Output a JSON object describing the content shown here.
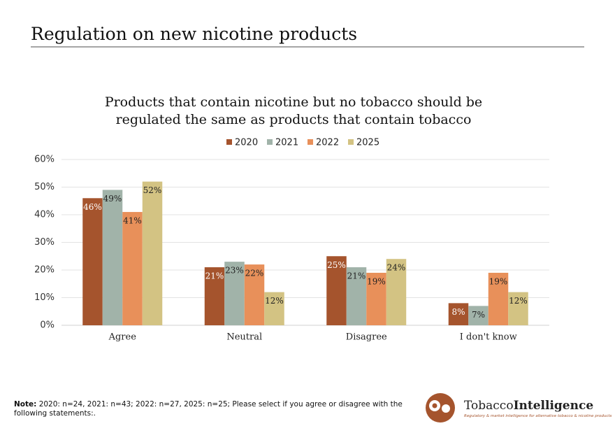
{
  "header": {
    "title": "Regulation on new nicotine products"
  },
  "chart_data": {
    "type": "bar",
    "title": "Products that contain nicotine but no tobacco should be regulated the same as products that contain tobacco",
    "categories": [
      "Agree",
      "Neutral",
      "Disagree",
      "I don't know"
    ],
    "series": [
      {
        "name": "2020",
        "color": "#a5542d",
        "values": [
          46,
          21,
          25,
          8
        ],
        "value_labels": [
          "46%",
          "21%",
          "25%",
          "8%"
        ]
      },
      {
        "name": "2021",
        "color": "#a1b3a9",
        "values": [
          49,
          23,
          21,
          7
        ],
        "value_labels": [
          "49%",
          "23%",
          "21%",
          "7%"
        ]
      },
      {
        "name": "2022",
        "color": "#e8905a",
        "values": [
          41,
          22,
          19,
          19
        ],
        "value_labels": [
          "41%",
          "22%",
          "19%",
          "19%"
        ]
      },
      {
        "name": "2025",
        "color": "#d3c383",
        "values": [
          52,
          12,
          24,
          12
        ],
        "value_labels": [
          "52%",
          "12%",
          "24%",
          "12%"
        ]
      }
    ],
    "ylim": [
      0,
      60
    ],
    "yticks": [
      {
        "value": 0,
        "label": "0%"
      },
      {
        "value": 10,
        "label": "10%"
      },
      {
        "value": 20,
        "label": "20%"
      },
      {
        "value": 30,
        "label": "30%"
      },
      {
        "value": 40,
        "label": "40%"
      },
      {
        "value": 50,
        "label": "50%"
      },
      {
        "value": 60,
        "label": "60%"
      }
    ],
    "grid": true,
    "legend": "top"
  },
  "note": {
    "label": "Note:",
    "text": "2020: n=24, 2021: n=43; 2022: n=27, 2025: n=25; Please select if you agree or disagree with the following statements:."
  },
  "logo": {
    "name_regular": "Tobacco",
    "name_bold": "Intelligence",
    "tagline": "Regulatory & market intelligence for alternative tobacco & nicotine products"
  }
}
